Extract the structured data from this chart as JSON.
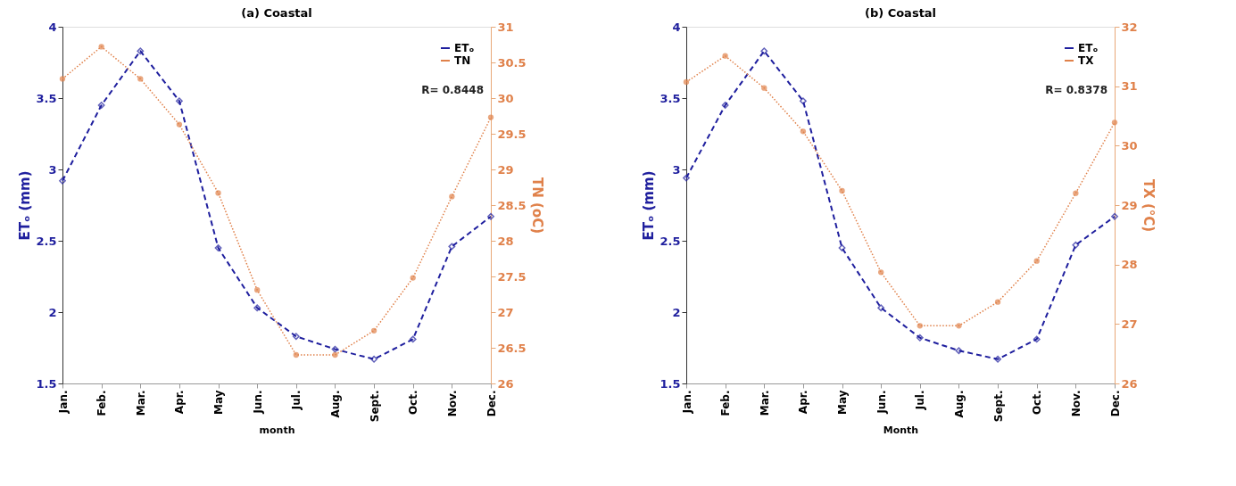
{
  "chart_data": [
    {
      "type": "line",
      "title": "(a)  Coastal",
      "xlabel": "month",
      "ylabel": "ETₒ (mm)",
      "y2label": "TN (oC)",
      "categories": [
        "Jan.",
        "Feb.",
        "Mar.",
        "Apr.",
        "May",
        "Jun.",
        "Jul.",
        "Aug.",
        "Sept.",
        "Oct.",
        "Nov.",
        "Dec."
      ],
      "ylim": [
        1.5,
        4
      ],
      "yticks": [
        1.5,
        2,
        2.5,
        3,
        3.5,
        4
      ],
      "y2lim": [
        26,
        31
      ],
      "y2ticks": [
        26,
        26.5,
        27,
        27.5,
        28,
        28.5,
        29,
        29.5,
        30,
        30.5,
        31
      ],
      "series": [
        {
          "name": "ETₒ",
          "color": "#1f1f9e",
          "marker": "diamond",
          "line_style": "dashed",
          "values": [
            2.92,
            3.45,
            3.83,
            3.48,
            2.45,
            2.03,
            1.83,
            1.74,
            1.67,
            1.81,
            2.46,
            2.67
          ]
        },
        {
          "name": "TN",
          "color": "#e0814a",
          "marker": "circle",
          "line_style": "dotted",
          "axis": "y2",
          "values": [
            30.27,
            30.72,
            30.27,
            29.63,
            28.67,
            27.31,
            26.4,
            26.4,
            26.74,
            27.48,
            28.62,
            29.73
          ]
        }
      ],
      "annotations": [
        "R= 0.8448"
      ],
      "legend": "top right",
      "grid": false
    },
    {
      "type": "line",
      "title": "(b) Coastal",
      "xlabel": "Month",
      "ylabel": "ETₒ (mm)",
      "y2label": "TX (°C)",
      "categories": [
        "Jan.",
        "Feb.",
        "Mar.",
        "Apr.",
        "May",
        "Jun.",
        "Jul.",
        "Aug.",
        "Sept.",
        "Oct.",
        "Nov.",
        "Dec."
      ],
      "ylim": [
        1.5,
        4
      ],
      "yticks": [
        1.5,
        2,
        2.5,
        3,
        3.5,
        4
      ],
      "y2lim": [
        26,
        32
      ],
      "y2ticks": [
        26,
        27,
        28,
        29,
        30,
        31,
        32
      ],
      "series": [
        {
          "name": "ETₒ",
          "color": "#1f1f9e",
          "marker": "diamond",
          "line_style": "dashed",
          "values": [
            2.94,
            3.45,
            3.83,
            3.48,
            2.45,
            2.03,
            1.82,
            1.73,
            1.67,
            1.81,
            2.47,
            2.67
          ]
        },
        {
          "name": "TX",
          "color": "#e0814a",
          "marker": "circle",
          "line_style": "dotted",
          "axis": "y2",
          "values": [
            31.07,
            31.51,
            30.97,
            30.24,
            29.24,
            27.87,
            26.97,
            26.97,
            27.37,
            28.06,
            29.2,
            30.39
          ]
        }
      ],
      "annotations": [
        "R= 0.8378"
      ],
      "legend": "top right",
      "grid": false
    }
  ]
}
